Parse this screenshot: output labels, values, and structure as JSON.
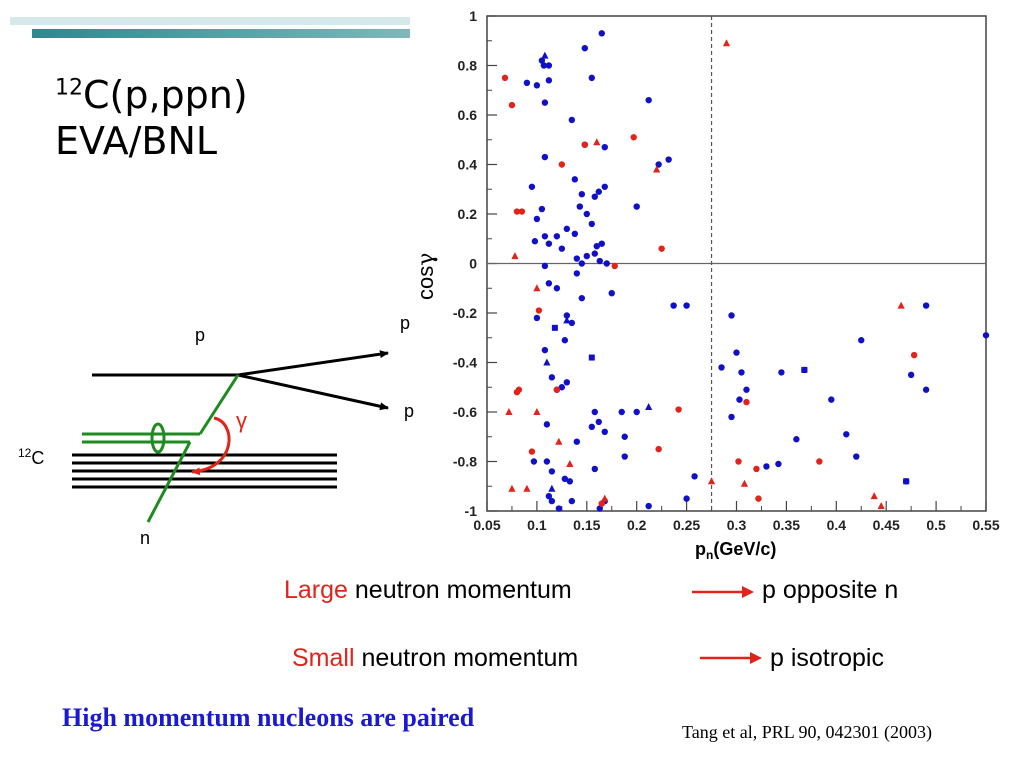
{
  "title": {
    "sup": "12",
    "line1": "C(p,ppn)",
    "line2": "EVA/BNL"
  },
  "diagram": {
    "label_p_in": "p",
    "label_p_out1": "p",
    "label_p_out2": "p",
    "label_gamma": "γ",
    "label_c_sup": "12",
    "label_c": "C",
    "label_n": "n"
  },
  "statements": [
    {
      "emph": "Large",
      "rest": " neutron momentum",
      "result": "p opposite n"
    },
    {
      "emph": "Small",
      "rest": " neutron momentum",
      "result": "p isotropic"
    }
  ],
  "conclusion": "High momentum nucleons are paired",
  "reference": "Tang et al, PRL 90, 042301 (2003)",
  "colors": {
    "blue": "#1010c8",
    "red": "#e2231a",
    "green": "#1f8a1f",
    "accent": "#2a8a8f"
  },
  "chart_data": {
    "type": "scatter",
    "xlabel": "p",
    "xlabel_sub": "n",
    "xlabel_unit": "(GeV/c)",
    "ylabel": "cos",
    "ylabel_greek": "γ",
    "xlim": [
      0.05,
      0.55
    ],
    "ylim": [
      -1,
      1
    ],
    "xticks": [
      "0.05",
      "0.1",
      "0.15",
      "0.2",
      "0.25",
      "0.3",
      "0.35",
      "0.4",
      "0.45",
      "0.5",
      "0.55"
    ],
    "yticks": [
      "1",
      "0.8",
      "0.6",
      "0.4",
      "0.2",
      "0",
      "-0.2",
      "-0.4",
      "-0.6",
      "-0.8",
      "-1"
    ],
    "vline": 0.275,
    "hline": 0,
    "series": [
      {
        "color": "blue",
        "marker": "circle",
        "points": [
          [
            0.165,
            0.93
          ],
          [
            0.148,
            0.87
          ],
          [
            0.105,
            0.82
          ],
          [
            0.107,
            0.8
          ],
          [
            0.112,
            0.8
          ],
          [
            0.09,
            0.73
          ],
          [
            0.155,
            0.75
          ],
          [
            0.1,
            0.72
          ],
          [
            0.112,
            0.74
          ],
          [
            0.108,
            0.65
          ],
          [
            0.135,
            0.58
          ],
          [
            0.212,
            0.66
          ],
          [
            0.148,
            0.48
          ],
          [
            0.168,
            0.47
          ],
          [
            0.108,
            0.43
          ],
          [
            0.232,
            0.42
          ],
          [
            0.222,
            0.4
          ],
          [
            0.138,
            0.34
          ],
          [
            0.095,
            0.31
          ],
          [
            0.145,
            0.28
          ],
          [
            0.158,
            0.27
          ],
          [
            0.162,
            0.29
          ],
          [
            0.168,
            0.31
          ],
          [
            0.2,
            0.23
          ],
          [
            0.105,
            0.22
          ],
          [
            0.1,
            0.18
          ],
          [
            0.143,
            0.23
          ],
          [
            0.15,
            0.2
          ],
          [
            0.155,
            0.16
          ],
          [
            0.12,
            0.11
          ],
          [
            0.098,
            0.09
          ],
          [
            0.108,
            0.11
          ],
          [
            0.112,
            0.08
          ],
          [
            0.13,
            0.14
          ],
          [
            0.125,
            0.06
          ],
          [
            0.16,
            0.07
          ],
          [
            0.165,
            0.08
          ],
          [
            0.138,
            0.12
          ],
          [
            0.15,
            0.03
          ],
          [
            0.158,
            0.04
          ],
          [
            0.145,
            0.0
          ],
          [
            0.163,
            0.01
          ],
          [
            0.17,
            0.0
          ],
          [
            0.108,
            -0.01
          ],
          [
            0.14,
            0.02
          ],
          [
            0.112,
            -0.08
          ],
          [
            0.12,
            -0.1
          ],
          [
            0.145,
            -0.14
          ],
          [
            0.175,
            -0.12
          ],
          [
            0.14,
            -0.04
          ],
          [
            0.1,
            -0.22
          ],
          [
            0.13,
            -0.21
          ],
          [
            0.135,
            -0.24
          ],
          [
            0.128,
            -0.31
          ],
          [
            0.237,
            -0.17
          ],
          [
            0.25,
            -0.17
          ],
          [
            0.295,
            -0.21
          ],
          [
            0.108,
            -0.35
          ],
          [
            0.115,
            -0.46
          ],
          [
            0.125,
            -0.5
          ],
          [
            0.12,
            -0.51
          ],
          [
            0.13,
            -0.48
          ],
          [
            0.285,
            -0.42
          ],
          [
            0.345,
            -0.44
          ],
          [
            0.368,
            -0.43
          ],
          [
            0.31,
            -0.51
          ],
          [
            0.303,
            -0.55
          ],
          [
            0.395,
            -0.55
          ],
          [
            0.185,
            -0.6
          ],
          [
            0.2,
            -0.6
          ],
          [
            0.158,
            -0.6
          ],
          [
            0.162,
            -0.64
          ],
          [
            0.168,
            -0.68
          ],
          [
            0.11,
            -0.65
          ],
          [
            0.14,
            -0.72
          ],
          [
            0.155,
            -0.66
          ],
          [
            0.188,
            -0.7
          ],
          [
            0.36,
            -0.71
          ],
          [
            0.41,
            -0.69
          ],
          [
            0.42,
            -0.78
          ],
          [
            0.097,
            -0.8
          ],
          [
            0.11,
            -0.8
          ],
          [
            0.115,
            -0.84
          ],
          [
            0.128,
            -0.87
          ],
          [
            0.133,
            -0.88
          ],
          [
            0.188,
            -0.78
          ],
          [
            0.158,
            -0.83
          ],
          [
            0.295,
            -0.62
          ],
          [
            0.33,
            -0.82
          ],
          [
            0.342,
            -0.81
          ],
          [
            0.258,
            -0.86
          ],
          [
            0.47,
            -0.88
          ],
          [
            0.112,
            -0.94
          ],
          [
            0.135,
            -0.96
          ],
          [
            0.168,
            -0.96
          ],
          [
            0.25,
            -0.95
          ],
          [
            0.163,
            -0.99
          ],
          [
            0.212,
            -0.98
          ],
          [
            0.425,
            -0.31
          ],
          [
            0.49,
            -0.17
          ],
          [
            0.55,
            -0.29
          ],
          [
            0.49,
            -0.51
          ],
          [
            0.475,
            -0.45
          ],
          [
            0.3,
            -0.36
          ],
          [
            0.305,
            -0.44
          ],
          [
            0.115,
            -0.96
          ],
          [
            0.122,
            -0.99
          ]
        ]
      },
      {
        "color": "blue",
        "marker": "triangle",
        "points": [
          [
            0.108,
            0.84
          ],
          [
            0.13,
            -0.23
          ],
          [
            0.11,
            -0.4
          ],
          [
            0.212,
            -0.58
          ],
          [
            0.115,
            -0.91
          ]
        ]
      },
      {
        "color": "blue",
        "marker": "square",
        "points": [
          [
            0.155,
            -0.38
          ],
          [
            0.118,
            -0.26
          ],
          [
            0.368,
            -0.43
          ],
          [
            0.47,
            -0.88
          ]
        ]
      },
      {
        "color": "red",
        "marker": "circle",
        "points": [
          [
            0.068,
            0.75
          ],
          [
            0.075,
            0.64
          ],
          [
            0.125,
            0.4
          ],
          [
            0.148,
            0.48
          ],
          [
            0.197,
            0.51
          ],
          [
            0.08,
            0.21
          ],
          [
            0.085,
            0.21
          ],
          [
            0.225,
            0.06
          ],
          [
            0.178,
            -0.01
          ],
          [
            0.082,
            -0.51
          ],
          [
            0.12,
            -0.51
          ],
          [
            0.102,
            -0.19
          ],
          [
            0.242,
            -0.59
          ],
          [
            0.095,
            -0.76
          ],
          [
            0.222,
            -0.75
          ],
          [
            0.302,
            -0.8
          ],
          [
            0.32,
            -0.83
          ],
          [
            0.383,
            -0.8
          ],
          [
            0.478,
            -0.37
          ],
          [
            0.322,
            -0.95
          ],
          [
            0.165,
            -0.97
          ],
          [
            0.08,
            -0.52
          ],
          [
            0.31,
            -0.56
          ]
        ]
      },
      {
        "color": "red",
        "marker": "triangle",
        "points": [
          [
            0.29,
            0.89
          ],
          [
            0.16,
            0.49
          ],
          [
            0.22,
            0.38
          ],
          [
            0.078,
            0.03
          ],
          [
            0.1,
            -0.1
          ],
          [
            0.072,
            -0.6
          ],
          [
            0.1,
            -0.6
          ],
          [
            0.122,
            -0.72
          ],
          [
            0.075,
            -0.91
          ],
          [
            0.09,
            -0.91
          ],
          [
            0.308,
            -0.89
          ],
          [
            0.438,
            -0.94
          ],
          [
            0.445,
            -0.98
          ],
          [
            0.168,
            -0.95
          ],
          [
            0.275,
            -0.88
          ],
          [
            0.465,
            -0.17
          ],
          [
            0.133,
            -0.81
          ]
        ]
      }
    ]
  }
}
